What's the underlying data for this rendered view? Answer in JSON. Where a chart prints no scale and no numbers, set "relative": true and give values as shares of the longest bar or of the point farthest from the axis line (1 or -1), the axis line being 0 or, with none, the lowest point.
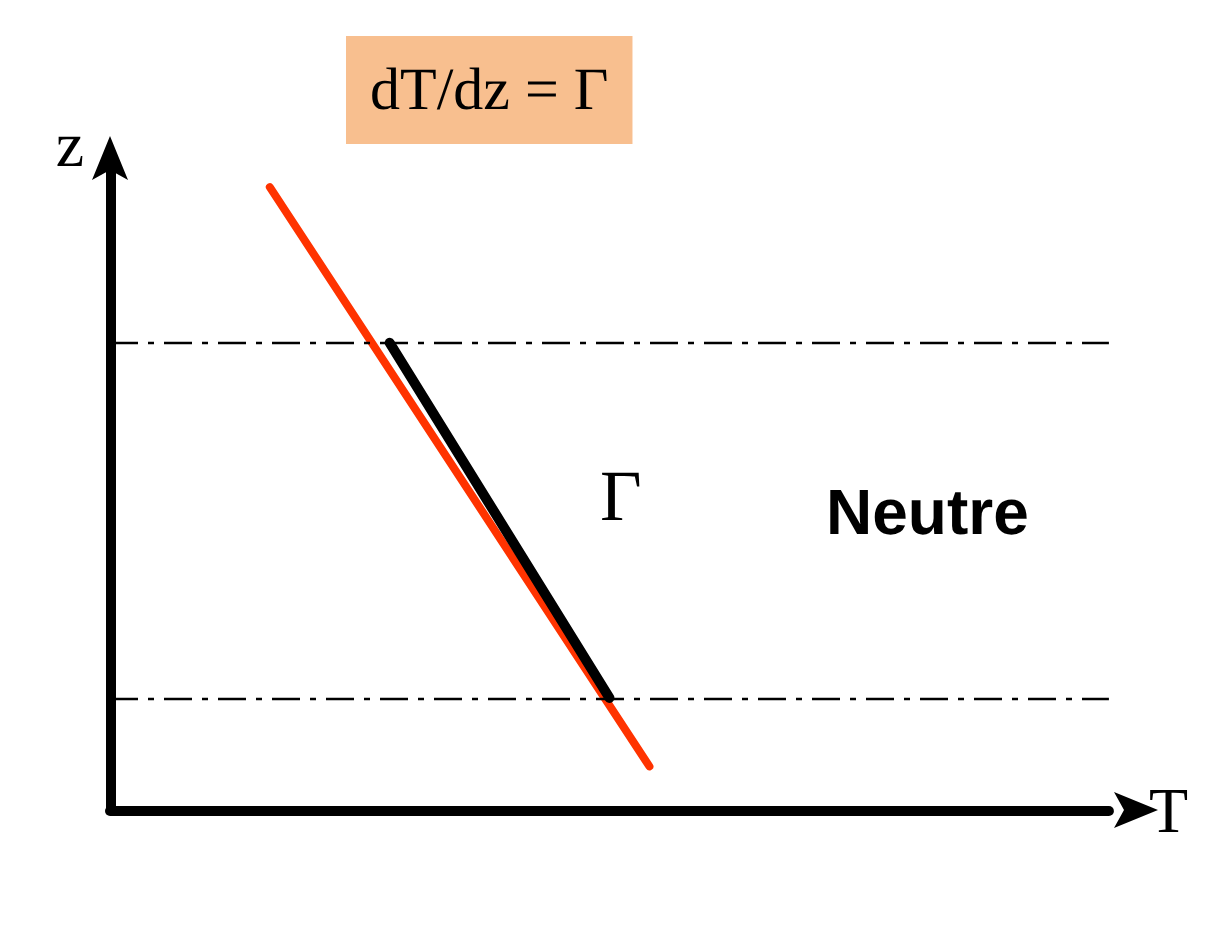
{
  "chart_data": {
    "type": "line",
    "relative": true,
    "xlabel": "T",
    "ylabel": "z",
    "grid": false,
    "marker": "none",
    "line_style": "solid",
    "categories": [
      null,
      null,
      null,
      null,
      null,
      null,
      null,
      null,
      null,
      null,
      null,
      null,
      null,
      null,
      null,
      null,
      null,
      null,
      null,
      null,
      null,
      null,
      null,
      null,
      null,
      null,
      null,
      null,
      null,
      null,
      null,
      null,
      null,
      null,
      null,
      null,
      null,
      null,
      null,
      null,
      null,
      null,
      null,
      null,
      null,
      null,
      null,
      null,
      null,
      null,
      null
    ],
    "series": [
      {
        "color": "#ff3300",
        "values": [
          null,
          null,
          null,
          null,
          null,
          null,
          null,
          null,
          1,
          null,
          null,
          null,
          null,
          null,
          null,
          null,
          null,
          null,
          null,
          null,
          null,
          null,
          null,
          null,
          null,
          null,
          null,
          0.07,
          null,
          null,
          null,
          null,
          null,
          null,
          null,
          null,
          null,
          null,
          null,
          null,
          null,
          null,
          null,
          null,
          null,
          null,
          null,
          null,
          null,
          null,
          null
        ]
      },
      {
        "color": "#000000",
        "values": [
          null,
          null,
          null,
          null,
          null,
          null,
          null,
          null,
          null,
          null,
          null,
          null,
          null,
          null,
          0.75,
          null,
          null,
          null,
          null,
          null,
          null,
          null,
          null,
          null,
          null,
          0.18,
          null,
          null,
          null,
          null,
          null,
          null,
          null,
          null,
          null,
          null,
          null,
          null,
          null,
          null,
          null,
          null,
          null,
          null,
          null,
          null,
          null,
          null,
          null,
          null,
          null
        ]
      }
    ],
    "ref_lines": [
      {
        "axis": "y",
        "value": 0.75,
        "color": "#000000",
        "line_style": "dashed"
      },
      {
        "axis": "y",
        "value": 0.18,
        "color": "#000000",
        "line_style": "dashed"
      }
    ],
    "annotations": [
      "dT/dz = Γ",
      "Γ",
      "Neutre"
    ]
  }
}
